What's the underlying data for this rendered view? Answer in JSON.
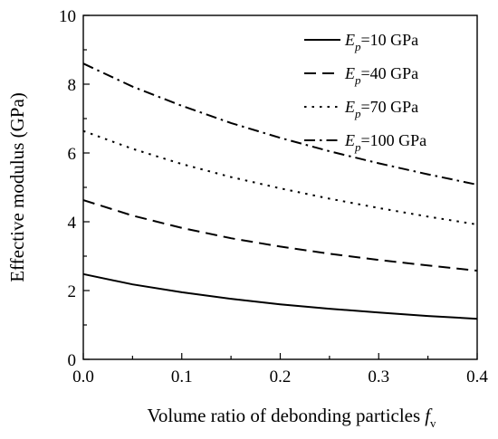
{
  "chart_data": {
    "type": "line",
    "title": "",
    "xlabel": "Volume ratio of debonding particles",
    "xlabel_symbol": "f",
    "xlabel_subscript": "v",
    "ylabel": "Effective modulus (GPa)",
    "xlim": [
      0.0,
      0.4
    ],
    "ylim": [
      0,
      10
    ],
    "xticks": [
      0.0,
      0.1,
      0.2,
      0.3,
      0.4
    ],
    "xtick_labels": [
      "0.0",
      "0.1",
      "0.2",
      "0.3",
      "0.4"
    ],
    "yticks": [
      0,
      2,
      4,
      6,
      8,
      10
    ],
    "ytick_labels": [
      "0",
      "2",
      "4",
      "6",
      "8",
      "10"
    ],
    "grid": false,
    "legend_position": "top-right",
    "x": [
      0.0,
      0.05,
      0.1,
      0.15,
      0.2,
      0.25,
      0.3,
      0.35,
      0.4
    ],
    "series": [
      {
        "name": "=10 GPa",
        "legend_symbol": "E",
        "legend_subscript": "p",
        "line_style": "solid",
        "values": [
          2.48,
          2.18,
          1.95,
          1.76,
          1.6,
          1.47,
          1.36,
          1.26,
          1.18
        ]
      },
      {
        "name": "=40 GPa",
        "legend_symbol": "E",
        "legend_subscript": "p",
        "line_style": "dashed",
        "values": [
          4.63,
          4.18,
          3.82,
          3.52,
          3.28,
          3.07,
          2.89,
          2.73,
          2.58
        ]
      },
      {
        "name": "=70 GPa",
        "legend_symbol": "E",
        "legend_subscript": "p",
        "line_style": "dotted",
        "values": [
          6.64,
          6.12,
          5.68,
          5.3,
          4.97,
          4.67,
          4.4,
          4.15,
          3.92
        ]
      },
      {
        "name": "=100 GPa",
        "legend_symbol": "E",
        "legend_subscript": "p",
        "line_style": "dash-dot",
        "values": [
          8.6,
          7.93,
          7.37,
          6.87,
          6.44,
          6.05,
          5.7,
          5.38,
          5.08
        ]
      }
    ]
  }
}
